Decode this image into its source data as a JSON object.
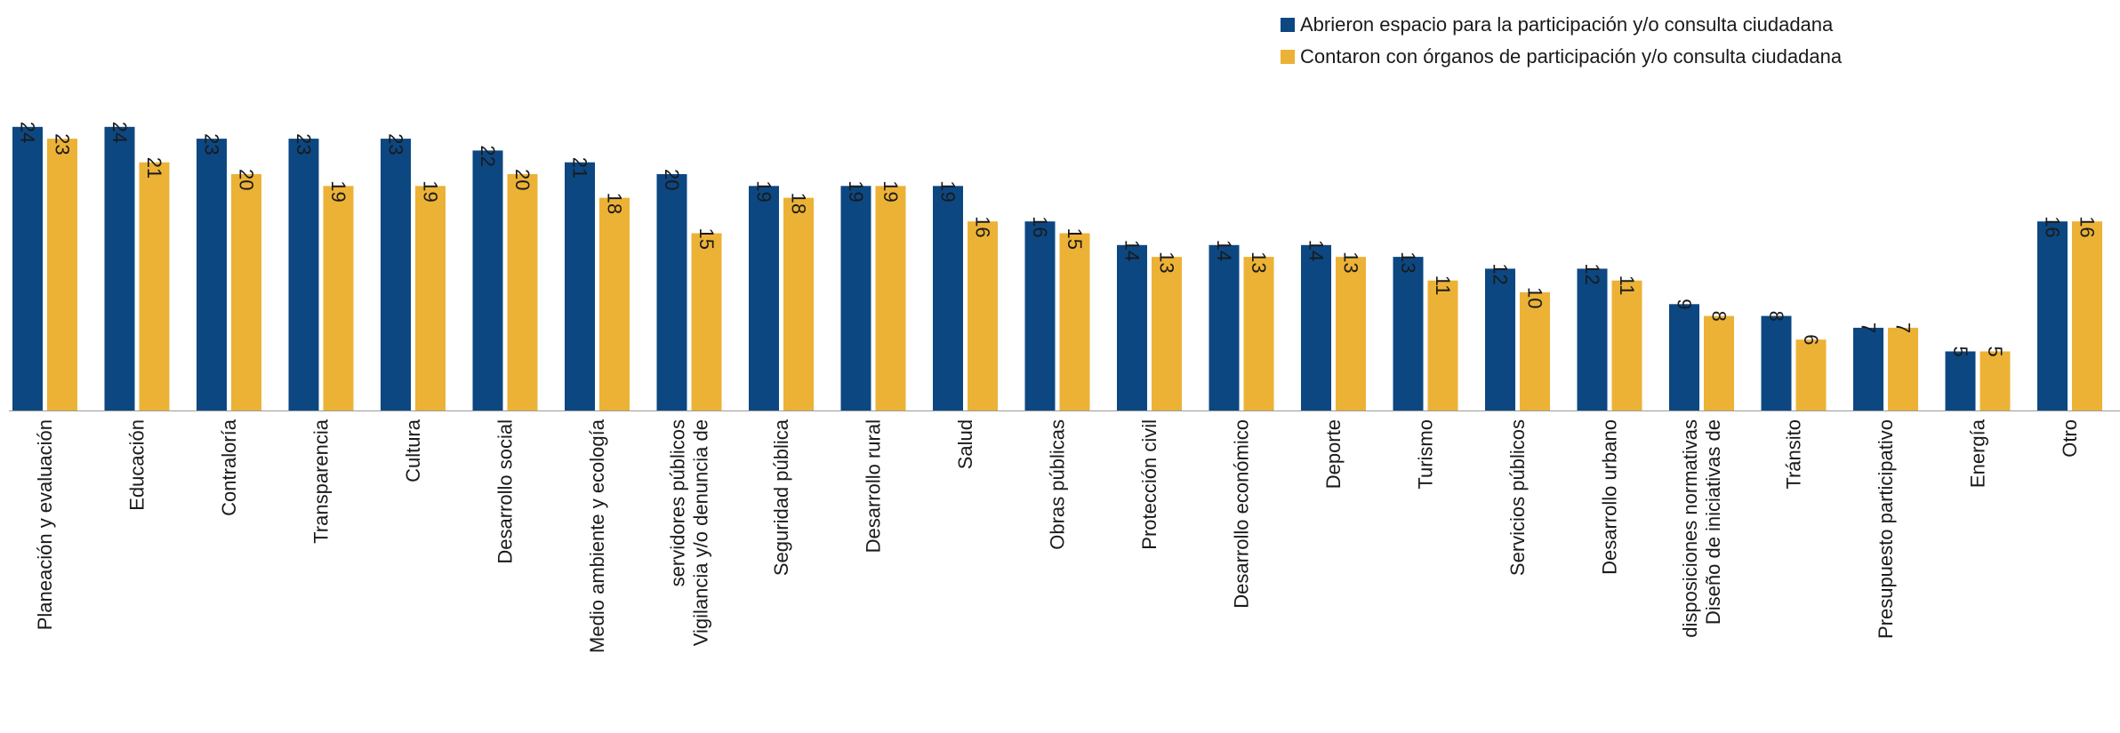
{
  "chart_data": {
    "type": "bar",
    "title": "",
    "xlabel": "",
    "ylabel": "",
    "ylim": [
      0,
      25
    ],
    "grid": false,
    "legend_position": "top-right",
    "categories": [
      [
        "Planeación y evaluación"
      ],
      [
        "Educación"
      ],
      [
        "Contraloría"
      ],
      [
        "Transparencia"
      ],
      [
        "Cultura"
      ],
      [
        "Desarrollo social"
      ],
      [
        "Medio ambiente y ecología"
      ],
      [
        "Vigilancia y/o denuncia de",
        "servidores públicos"
      ],
      [
        "Seguridad pública"
      ],
      [
        "Desarrollo rural"
      ],
      [
        "Salud"
      ],
      [
        "Obras públicas"
      ],
      [
        "Protección civil"
      ],
      [
        "Desarrollo económico"
      ],
      [
        "Deporte"
      ],
      [
        "Turismo"
      ],
      [
        "Servicios públicos"
      ],
      [
        "Desarrollo urbano"
      ],
      [
        "Diseño de iniciativas de",
        "disposiciones normativas"
      ],
      [
        "Tránsito"
      ],
      [
        "Presupuesto participativo"
      ],
      [
        "Energía"
      ],
      [
        "Otro"
      ]
    ],
    "series": [
      {
        "name": "Abrieron espacio para la participación y/o consulta ciudadana",
        "color": "#0c4781",
        "values": [
          24,
          24,
          23,
          23,
          23,
          22,
          21,
          20,
          19,
          19,
          19,
          16,
          14,
          14,
          14,
          13,
          12,
          12,
          9,
          8,
          7,
          5,
          16
        ]
      },
      {
        "name": "Contaron con órganos de participación y/o consulta ciudadana",
        "color": "#ecb236",
        "values": [
          23,
          21,
          20,
          19,
          19,
          20,
          18,
          15,
          18,
          19,
          16,
          15,
          13,
          13,
          13,
          11,
          10,
          11,
          8,
          6,
          7,
          5,
          16
        ]
      }
    ]
  }
}
